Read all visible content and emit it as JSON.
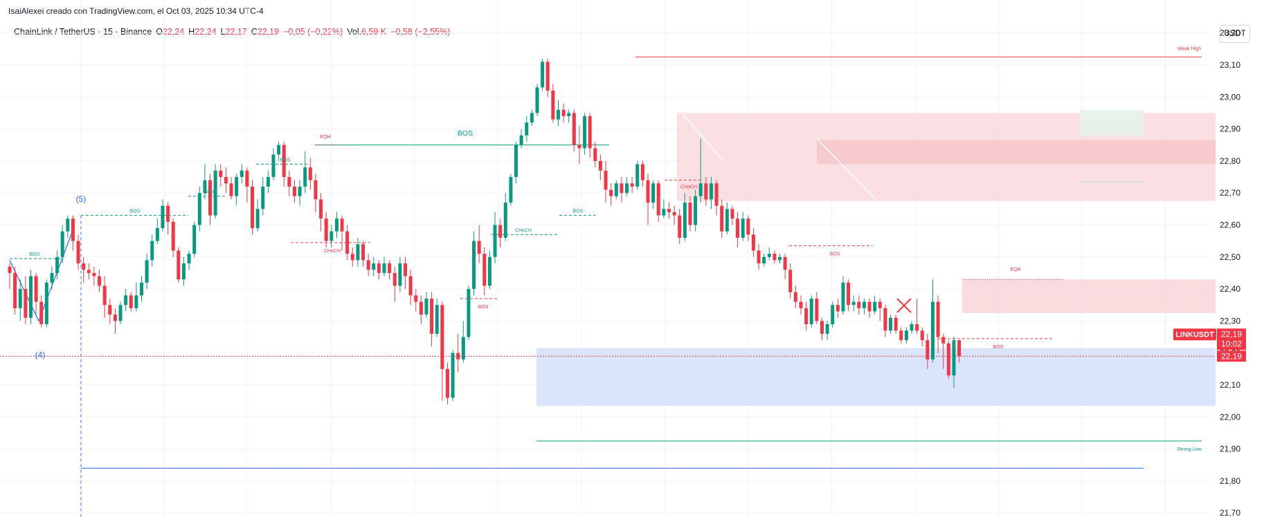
{
  "attribution": "IsaiAlexei creado con TradingView.com, el Oct 03, 2025 10:34 UTC-4",
  "legend": {
    "symbol": "ChainLink / TetherUS · 15 · Binance",
    "o_label": "O",
    "o_value": "22,24",
    "h_label": "H",
    "h_value": "22,24",
    "l_label": "L",
    "l_value": "22,17",
    "c_label": "C",
    "c_value": "22,19",
    "change": "−0,05 (−0,22%)",
    "vol_label": "Vol.",
    "vol_value": "6,59 K",
    "vol_change": "−0,58 (−2,55%)"
  },
  "currency_button": "USDT",
  "price_tag": {
    "symbol": "LINKUSDT",
    "price": "22,19",
    "countdown": "10:02",
    "price2": "22,19"
  },
  "colors": {
    "up": "#089981",
    "down": "#f23645",
    "supply": "#f8d0d3",
    "demand": "#d6e2fc",
    "blue_line": "#2962ff"
  },
  "annotations": {
    "bos": "BOS",
    "choch": "CHoCH",
    "eqh": "EQH",
    "weak_high": "Weak High",
    "strong_low": "Strong Low",
    "wave4": "(4)",
    "wave5": "(5)"
  },
  "chart_data": {
    "type": "candlestick",
    "title": "ChainLink / TetherUS · 15 · Binance",
    "y_ticks": [
      "23,20",
      "23,10",
      "23,00",
      "22,90",
      "22,80",
      "22,70",
      "22,60",
      "22,50",
      "22,40",
      "22,30",
      "22,20",
      "22,10",
      "22,00",
      "21,90",
      "21,80",
      "21,70"
    ],
    "ylim": [
      21.7,
      23.2
    ],
    "grid": true,
    "last_price": 22.19,
    "candles": [
      [
        22.47,
        22.45,
        22.48,
        22.4
      ],
      [
        22.45,
        22.34,
        22.47,
        22.32
      ],
      [
        22.34,
        22.4,
        22.43,
        22.3
      ],
      [
        22.4,
        22.31,
        22.44,
        22.29
      ],
      [
        22.31,
        22.44,
        22.46,
        22.29
      ],
      [
        22.44,
        22.36,
        22.45,
        22.32
      ],
      [
        22.36,
        22.29,
        22.38,
        22.28
      ],
      [
        22.29,
        22.42,
        22.43,
        22.28
      ],
      [
        22.42,
        22.45,
        22.47,
        22.4
      ],
      [
        22.45,
        22.5,
        22.52,
        22.43
      ],
      [
        22.5,
        22.58,
        22.6,
        22.48
      ],
      [
        22.58,
        22.62,
        22.63,
        22.56
      ],
      [
        22.62,
        22.55,
        22.63,
        22.52
      ],
      [
        22.55,
        22.48,
        22.57,
        22.46
      ],
      [
        22.48,
        22.46,
        22.5,
        22.42
      ],
      [
        22.46,
        22.45,
        22.48,
        22.43
      ],
      [
        22.45,
        22.44,
        22.47,
        22.41
      ],
      [
        22.44,
        22.41,
        22.46,
        22.39
      ],
      [
        22.41,
        22.35,
        22.44,
        22.31
      ],
      [
        22.35,
        22.32,
        22.37,
        22.29
      ],
      [
        22.32,
        22.3,
        22.34,
        22.26
      ],
      [
        22.3,
        22.35,
        22.36,
        22.29
      ],
      [
        22.35,
        22.38,
        22.4,
        22.33
      ],
      [
        22.38,
        22.34,
        22.39,
        22.33
      ],
      [
        22.34,
        22.38,
        22.42,
        22.33
      ],
      [
        22.38,
        22.42,
        22.44,
        22.36
      ],
      [
        22.42,
        22.49,
        22.51,
        22.4
      ],
      [
        22.49,
        22.55,
        22.57,
        22.47
      ],
      [
        22.55,
        22.59,
        22.62,
        22.54
      ],
      [
        22.59,
        22.66,
        22.68,
        22.58
      ],
      [
        22.66,
        22.61,
        22.67,
        22.57
      ],
      [
        22.61,
        22.52,
        22.62,
        22.5
      ],
      [
        22.52,
        22.43,
        22.53,
        22.42
      ],
      [
        22.43,
        22.48,
        22.5,
        22.41
      ],
      [
        22.48,
        22.51,
        22.52,
        22.46
      ],
      [
        22.51,
        22.6,
        22.61,
        22.5
      ],
      [
        22.6,
        22.7,
        22.72,
        22.58
      ],
      [
        22.7,
        22.74,
        22.79,
        22.68
      ],
      [
        22.74,
        22.63,
        22.76,
        22.6
      ],
      [
        22.63,
        22.77,
        22.79,
        22.62
      ],
      [
        22.77,
        22.75,
        22.79,
        22.72
      ],
      [
        22.75,
        22.73,
        22.78,
        22.7
      ],
      [
        22.73,
        22.69,
        22.75,
        22.68
      ],
      [
        22.69,
        22.75,
        22.76,
        22.66
      ],
      [
        22.75,
        22.77,
        22.79,
        22.73
      ],
      [
        22.77,
        22.72,
        22.78,
        22.67
      ],
      [
        22.72,
        22.59,
        22.74,
        22.57
      ],
      [
        22.59,
        22.65,
        22.68,
        22.58
      ],
      [
        22.65,
        22.72,
        22.75,
        22.63
      ],
      [
        22.72,
        22.75,
        22.77,
        22.7
      ],
      [
        22.75,
        22.82,
        22.84,
        22.74
      ],
      [
        22.82,
        22.85,
        22.86,
        22.8
      ],
      [
        22.85,
        22.75,
        22.86,
        22.72
      ],
      [
        22.75,
        22.72,
        22.77,
        22.69
      ],
      [
        22.72,
        22.69,
        22.74,
        22.67
      ],
      [
        22.69,
        22.72,
        22.74,
        22.66
      ],
      [
        22.72,
        22.78,
        22.83,
        22.7
      ],
      [
        22.78,
        22.74,
        22.81,
        22.71
      ],
      [
        22.74,
        22.68,
        22.76,
        22.64
      ],
      [
        22.68,
        22.62,
        22.7,
        22.58
      ],
      [
        22.62,
        22.55,
        22.64,
        22.53
      ],
      [
        22.55,
        22.58,
        22.6,
        22.53
      ],
      [
        22.58,
        22.62,
        22.64,
        22.56
      ],
      [
        22.62,
        22.58,
        22.63,
        22.52
      ],
      [
        22.58,
        22.51,
        22.6,
        22.49
      ],
      [
        22.51,
        22.49,
        22.53,
        22.47
      ],
      [
        22.49,
        22.54,
        22.56,
        22.47
      ],
      [
        22.54,
        22.49,
        22.55,
        22.47
      ],
      [
        22.49,
        22.46,
        22.51,
        22.44
      ],
      [
        22.46,
        22.48,
        22.5,
        22.44
      ],
      [
        22.48,
        22.45,
        22.49,
        22.43
      ],
      [
        22.45,
        22.48,
        22.5,
        22.44
      ],
      [
        22.48,
        22.45,
        22.49,
        22.43
      ],
      [
        22.45,
        22.41,
        22.47,
        22.36
      ],
      [
        22.41,
        22.48,
        22.5,
        22.39
      ],
      [
        22.48,
        22.44,
        22.5,
        22.4
      ],
      [
        22.44,
        22.38,
        22.46,
        22.35
      ],
      [
        22.38,
        22.36,
        22.4,
        22.33
      ],
      [
        22.36,
        22.32,
        22.38,
        22.29
      ],
      [
        22.32,
        22.37,
        22.39,
        22.31
      ],
      [
        22.37,
        22.26,
        22.39,
        22.22
      ],
      [
        22.26,
        22.35,
        22.37,
        22.25
      ],
      [
        22.35,
        22.15,
        22.36,
        22.05
      ],
      [
        22.15,
        22.06,
        22.17,
        22.04
      ],
      [
        22.06,
        22.2,
        22.21,
        22.05
      ],
      [
        22.2,
        22.18,
        22.26,
        22.14
      ],
      [
        22.18,
        22.25,
        22.3,
        22.17
      ],
      [
        22.25,
        22.4,
        22.41,
        22.24
      ],
      [
        22.4,
        22.55,
        22.58,
        22.38
      ],
      [
        22.55,
        22.51,
        22.6,
        22.48
      ],
      [
        22.51,
        22.41,
        22.53,
        22.38
      ],
      [
        22.41,
        22.5,
        22.52,
        22.4
      ],
      [
        22.5,
        22.6,
        22.64,
        22.48
      ],
      [
        22.6,
        22.56,
        22.62,
        22.53
      ],
      [
        22.56,
        22.67,
        22.7,
        22.55
      ],
      [
        22.67,
        22.75,
        22.76,
        22.66
      ],
      [
        22.75,
        22.85,
        22.86,
        22.73
      ],
      [
        22.85,
        22.88,
        22.9,
        22.84
      ],
      [
        22.88,
        22.92,
        22.94,
        22.86
      ],
      [
        22.92,
        22.95,
        22.96,
        22.91
      ],
      [
        22.95,
        23.03,
        23.04,
        22.94
      ],
      [
        23.03,
        23.11,
        23.12,
        23.02
      ],
      [
        23.11,
        23.02,
        23.12,
        23.0
      ],
      [
        23.02,
        22.93,
        23.04,
        22.92
      ],
      [
        22.93,
        22.96,
        22.99,
        22.91
      ],
      [
        22.96,
        22.94,
        22.98,
        22.92
      ],
      [
        22.94,
        22.95,
        22.96,
        22.92
      ],
      [
        22.95,
        22.85,
        22.96,
        22.83
      ],
      [
        22.85,
        22.84,
        22.91,
        22.79
      ],
      [
        22.84,
        22.94,
        22.95,
        22.82
      ],
      [
        22.94,
        22.84,
        22.95,
        22.81
      ],
      [
        22.84,
        22.8,
        22.86,
        22.78
      ],
      [
        22.8,
        22.77,
        22.82,
        22.74
      ],
      [
        22.77,
        22.71,
        22.8,
        22.67
      ],
      [
        22.71,
        22.69,
        22.73,
        22.66
      ],
      [
        22.69,
        22.73,
        22.74,
        22.68
      ],
      [
        22.73,
        22.7,
        22.75,
        22.67
      ],
      [
        22.7,
        22.73,
        22.75,
        22.69
      ],
      [
        22.73,
        22.72,
        22.75,
        22.7
      ],
      [
        22.72,
        22.79,
        22.8,
        22.71
      ],
      [
        22.79,
        22.74,
        22.8,
        22.72
      ],
      [
        22.74,
        22.67,
        22.76,
        22.6
      ],
      [
        22.67,
        22.73,
        22.74,
        22.65
      ],
      [
        22.73,
        22.63,
        22.74,
        22.61
      ],
      [
        22.63,
        22.65,
        22.68,
        22.62
      ],
      [
        22.65,
        22.64,
        22.67,
        22.62
      ],
      [
        22.64,
        22.63,
        22.66,
        22.6
      ],
      [
        22.63,
        22.56,
        22.65,
        22.54
      ],
      [
        22.56,
        22.67,
        22.7,
        22.55
      ],
      [
        22.67,
        22.6,
        22.69,
        22.58
      ],
      [
        22.6,
        22.69,
        22.71,
        22.58
      ],
      [
        22.69,
        22.73,
        22.87,
        22.67
      ],
      [
        22.73,
        22.68,
        22.75,
        22.66
      ],
      [
        22.68,
        22.73,
        22.75,
        22.65
      ],
      [
        22.73,
        22.66,
        22.74,
        22.63
      ],
      [
        22.66,
        22.58,
        22.68,
        22.56
      ],
      [
        22.58,
        22.65,
        22.67,
        22.57
      ],
      [
        22.65,
        22.62,
        22.66,
        22.6
      ],
      [
        22.62,
        22.56,
        22.64,
        22.53
      ],
      [
        22.56,
        22.62,
        22.64,
        22.55
      ],
      [
        22.62,
        22.57,
        22.63,
        22.55
      ],
      [
        22.57,
        22.52,
        22.59,
        22.5
      ],
      [
        22.52,
        22.48,
        22.54,
        22.46
      ],
      [
        22.48,
        22.5,
        22.51,
        22.47
      ],
      [
        22.5,
        22.51,
        22.53,
        22.49
      ],
      [
        22.51,
        22.49,
        22.52,
        22.48
      ],
      [
        22.49,
        22.5,
        22.51,
        22.48
      ],
      [
        22.5,
        22.46,
        22.51,
        22.43
      ],
      [
        22.46,
        22.39,
        22.48,
        22.37
      ],
      [
        22.39,
        22.36,
        22.41,
        22.34
      ],
      [
        22.36,
        22.34,
        22.38,
        22.32
      ],
      [
        22.34,
        22.29,
        22.36,
        22.27
      ],
      [
        22.29,
        22.37,
        22.38,
        22.28
      ],
      [
        22.37,
        22.3,
        22.39,
        22.29
      ],
      [
        22.3,
        22.26,
        22.31,
        22.24
      ],
      [
        22.26,
        22.29,
        22.3,
        22.24
      ],
      [
        22.29,
        22.35,
        22.36,
        22.28
      ],
      [
        22.35,
        22.33,
        22.37,
        22.31
      ],
      [
        22.33,
        22.42,
        22.44,
        22.32
      ],
      [
        22.42,
        22.35,
        22.43,
        22.33
      ],
      [
        22.35,
        22.36,
        22.38,
        22.33
      ],
      [
        22.36,
        22.34,
        22.38,
        22.32
      ],
      [
        22.34,
        22.36,
        22.37,
        22.32
      ],
      [
        22.36,
        22.33,
        22.37,
        22.31
      ],
      [
        22.33,
        22.36,
        22.38,
        22.32
      ],
      [
        22.36,
        22.34,
        22.37,
        22.3
      ],
      [
        22.34,
        22.27,
        22.35,
        22.25
      ],
      [
        22.27,
        22.31,
        22.32,
        22.26
      ],
      [
        22.31,
        22.27,
        22.32,
        22.26
      ],
      [
        22.27,
        22.24,
        22.28,
        22.23
      ],
      [
        22.24,
        22.27,
        22.28,
        22.23
      ],
      [
        22.27,
        22.29,
        22.3,
        22.26
      ],
      [
        22.29,
        22.27,
        22.37,
        22.26
      ],
      [
        22.27,
        22.24,
        22.28,
        22.22
      ],
      [
        22.24,
        22.18,
        22.26,
        22.15
      ],
      [
        22.18,
        22.36,
        22.43,
        22.17
      ],
      [
        22.36,
        22.25,
        22.38,
        22.2
      ],
      [
        22.25,
        22.23,
        22.26,
        22.15
      ],
      [
        22.23,
        22.13,
        22.24,
        22.12
      ],
      [
        22.13,
        22.24,
        22.25,
        22.09
      ],
      [
        22.24,
        22.19,
        22.24,
        22.17
      ]
    ],
    "annotations": [
      {
        "text": "BOS",
        "price": 22.495,
        "color": "#089981"
      },
      {
        "text": "BOS",
        "price": 22.63,
        "color": "#089981"
      },
      {
        "text": "BOS",
        "price": 22.69,
        "color": "#089981"
      },
      {
        "text": "BOS",
        "price": 22.79,
        "color": "#089981"
      },
      {
        "text": "BOS",
        "price": 22.85,
        "color": "#089981"
      },
      {
        "text": "BOS",
        "price": 22.63,
        "color": "#089981"
      },
      {
        "text": "CHoCH",
        "price": 22.57,
        "color": "#089981"
      },
      {
        "text": "CHoCH",
        "price": 22.545,
        "color": "#f23645"
      },
      {
        "text": "BOS",
        "price": 22.37,
        "color": "#f23645"
      },
      {
        "text": "CHoCH",
        "price": 22.74,
        "color": "#f23645"
      },
      {
        "text": "BOS",
        "price": 22.535,
        "color": "#f23645"
      },
      {
        "text": "BOS",
        "price": 22.245,
        "color": "#f23645"
      },
      {
        "text": "EQH",
        "price": 22.85,
        "color": "#f23645"
      },
      {
        "text": "EQH",
        "price": 22.43,
        "color": "#f23645"
      },
      {
        "text": "Weak High",
        "price": 23.125,
        "color": "#f23645"
      },
      {
        "text": "Strong Low",
        "price": 21.925,
        "color": "#089981"
      }
    ]
  }
}
